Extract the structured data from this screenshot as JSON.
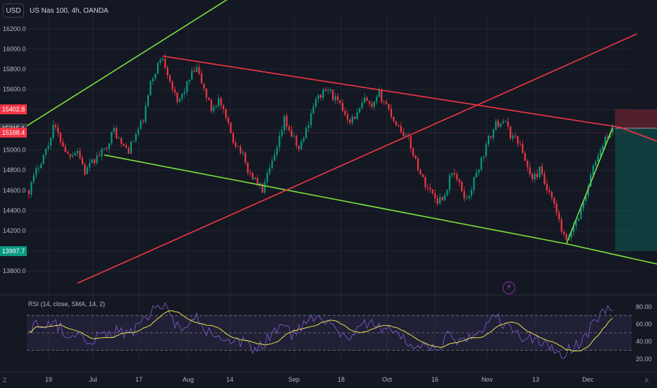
{
  "header": {
    "currency_button": "USD",
    "symbol": "US Nas 100, 4h, OANDA"
  },
  "price_tags": [
    {
      "label": "15402.8",
      "color": "#f23645"
    },
    {
      "label": "15215.1",
      "color": "#3b3f4a"
    },
    {
      "label": "15168.4",
      "color": "#f23645"
    },
    {
      "label": "13997.7",
      "color": "#089981"
    }
  ],
  "rsi": {
    "title": "RSI (14, close, SMA, 14, 2)",
    "levels": [
      70,
      50,
      30
    ],
    "ylim": [
      15,
      88
    ],
    "ticks": [
      "80.00",
      "60.00",
      "40.00",
      "20.00"
    ]
  },
  "bolt_icon": "lightning-icon",
  "colors": {
    "background": "#141823",
    "grid": "#1f2430",
    "up": "#089981",
    "down": "#f23645",
    "green_line": "#7ce03a",
    "red_line": "#f23645",
    "rsi_line": "#7e57c2",
    "rsi_ma": "#e8e04a"
  },
  "chart_data": {
    "type": "candlestick",
    "title": "US Nas 100, 4h, OANDA",
    "xlabel": "",
    "ylabel": "",
    "ylim": [
      13620,
      16360
    ],
    "y_ticks": [
      13800,
      14000,
      14200,
      14400,
      14600,
      14800,
      15000,
      15200,
      15400,
      15600,
      15800,
      16000,
      16200
    ],
    "x_ticks": [
      "19",
      "Jul",
      "17",
      "Aug",
      "14",
      "Sep",
      "18",
      "Oct",
      "16",
      "Nov",
      "13",
      "Dec"
    ],
    "price_path": [
      [
        0,
        14600
      ],
      [
        4,
        14850
      ],
      [
        8,
        15050
      ],
      [
        10,
        15250
      ],
      [
        13,
        15100
      ],
      [
        16,
        14950
      ],
      [
        20,
        15000
      ],
      [
        23,
        14780
      ],
      [
        27,
        14900
      ],
      [
        31,
        15000
      ],
      [
        35,
        15200
      ],
      [
        38,
        15050
      ],
      [
        41,
        15000
      ],
      [
        44,
        15150
      ],
      [
        47,
        15300
      ],
      [
        50,
        15650
      ],
      [
        53,
        15850
      ],
      [
        55,
        15920
      ],
      [
        58,
        15700
      ],
      [
        61,
        15450
      ],
      [
        64,
        15600
      ],
      [
        67,
        15750
      ],
      [
        69,
        15800
      ],
      [
        72,
        15600
      ],
      [
        75,
        15400
      ],
      [
        78,
        15500
      ],
      [
        81,
        15300
      ],
      [
        84,
        15100
      ],
      [
        87,
        15000
      ],
      [
        90,
        14800
      ],
      [
        93,
        14700
      ],
      [
        96,
        14600
      ],
      [
        99,
        14800
      ],
      [
        102,
        15000
      ],
      [
        105,
        15300
      ],
      [
        108,
        15150
      ],
      [
        111,
        15000
      ],
      [
        114,
        15200
      ],
      [
        117,
        15450
      ],
      [
        120,
        15550
      ],
      [
        123,
        15600
      ],
      [
        126,
        15500
      ],
      [
        129,
        15400
      ],
      [
        132,
        15300
      ],
      [
        135,
        15350
      ],
      [
        138,
        15500
      ],
      [
        141,
        15400
      ],
      [
        144,
        15550
      ],
      [
        147,
        15450
      ],
      [
        150,
        15300
      ],
      [
        153,
        15200
      ],
      [
        156,
        15100
      ],
      [
        159,
        14900
      ],
      [
        162,
        14700
      ],
      [
        165,
        14600
      ],
      [
        168,
        14500
      ],
      [
        171,
        14550
      ],
      [
        174,
        14800
      ],
      [
        177,
        14650
      ],
      [
        180,
        14500
      ],
      [
        183,
        14700
      ],
      [
        186,
        14900
      ],
      [
        189,
        15100
      ],
      [
        192,
        15250
      ],
      [
        195,
        15300
      ],
      [
        198,
        15150
      ],
      [
        201,
        15100
      ],
      [
        204,
        14900
      ],
      [
        207,
        14700
      ],
      [
        210,
        14800
      ],
      [
        213,
        14600
      ],
      [
        216,
        14450
      ],
      [
        219,
        14200
      ],
      [
        221,
        14080
      ],
      [
        224,
        14250
      ],
      [
        227,
        14400
      ],
      [
        230,
        14650
      ],
      [
        233,
        14900
      ],
      [
        236,
        15050
      ],
      [
        238,
        15150
      ],
      [
        240,
        15215
      ]
    ],
    "rsi_path": [
      [
        0,
        55
      ],
      [
        6,
        62
      ],
      [
        12,
        58
      ],
      [
        18,
        45
      ],
      [
        24,
        40
      ],
      [
        30,
        48
      ],
      [
        36,
        52
      ],
      [
        42,
        50
      ],
      [
        48,
        65
      ],
      [
        52,
        78
      ],
      [
        56,
        82
      ],
      [
        60,
        55
      ],
      [
        64,
        60
      ],
      [
        68,
        72
      ],
      [
        72,
        55
      ],
      [
        76,
        45
      ],
      [
        80,
        38
      ],
      [
        84,
        35
      ],
      [
        88,
        40
      ],
      [
        92,
        30
      ],
      [
        96,
        35
      ],
      [
        100,
        50
      ],
      [
        104,
        60
      ],
      [
        108,
        48
      ],
      [
        112,
        55
      ],
      [
        116,
        68
      ],
      [
        120,
        72
      ],
      [
        124,
        60
      ],
      [
        128,
        50
      ],
      [
        132,
        45
      ],
      [
        136,
        58
      ],
      [
        140,
        62
      ],
      [
        144,
        55
      ],
      [
        148,
        60
      ],
      [
        152,
        45
      ],
      [
        156,
        38
      ],
      [
        160,
        35
      ],
      [
        164,
        30
      ],
      [
        168,
        32
      ],
      [
        172,
        45
      ],
      [
        176,
        42
      ],
      [
        180,
        40
      ],
      [
        184,
        50
      ],
      [
        188,
        60
      ],
      [
        192,
        68
      ],
      [
        196,
        58
      ],
      [
        200,
        50
      ],
      [
        204,
        42
      ],
      [
        208,
        45
      ],
      [
        212,
        35
      ],
      [
        216,
        30
      ],
      [
        220,
        25
      ],
      [
        224,
        35
      ],
      [
        228,
        42
      ],
      [
        232,
        60
      ],
      [
        236,
        75
      ],
      [
        240,
        80
      ]
    ],
    "trendlines": [
      {
        "color": "green",
        "points": [
          [
            -8,
            15130
          ],
          [
            96,
            16710
          ]
        ]
      },
      {
        "color": "red",
        "points": [
          [
            55,
            15930
          ],
          [
            243,
            15225
          ]
        ]
      },
      {
        "color": "red",
        "points": [
          [
            243,
            15225
          ],
          [
            259,
            15080
          ]
        ]
      },
      {
        "color": "green",
        "points": [
          [
            31,
            14950
          ],
          [
            221,
            14070
          ]
        ]
      },
      {
        "color": "green",
        "points": [
          [
            221,
            14070
          ],
          [
            262,
            13850
          ]
        ]
      },
      {
        "color": "red",
        "points": [
          [
            20,
            13680
          ],
          [
            250,
            16150
          ]
        ]
      },
      {
        "color": "green",
        "points": [
          [
            221,
            14070
          ],
          [
            240,
            15220
          ]
        ]
      }
    ],
    "position": {
      "start_bar": 241,
      "end_bar": 277,
      "entry": 15215.1,
      "stop": 15402.8,
      "target": 13997.7
    },
    "horizontal_lines": [
      15168.4
    ]
  }
}
